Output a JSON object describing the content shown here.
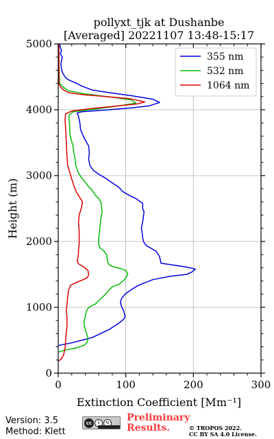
{
  "chart_data": {
    "type": "line",
    "title": "pollyxt_tjk at Dushanbe",
    "subtitle": "[Averaged] 20221107 13:48-15:17",
    "xlabel": "Extinction Coefficient [Mm⁻¹]",
    "ylabel": "Height (m)",
    "xlim": [
      0,
      300
    ],
    "ylim": [
      0,
      5000
    ],
    "xticks": [
      0,
      100,
      200,
      300
    ],
    "yticks": [
      0,
      1000,
      2000,
      3000,
      4000,
      5000
    ],
    "grid": true,
    "legend_position": "top-right",
    "series": [
      {
        "name": "355 nm",
        "color": "#0000dd",
        "points": [
          [
            0,
            420
          ],
          [
            20,
            460
          ],
          [
            50,
            540
          ],
          [
            75,
            660
          ],
          [
            90,
            760
          ],
          [
            97,
            820
          ],
          [
            99,
            860
          ],
          [
            97,
            940
          ],
          [
            93,
            1030
          ],
          [
            92,
            1080
          ],
          [
            94,
            1140
          ],
          [
            100,
            1210
          ],
          [
            110,
            1280
          ],
          [
            118,
            1330
          ],
          [
            125,
            1360
          ],
          [
            140,
            1420
          ],
          [
            165,
            1470
          ],
          [
            190,
            1500
          ],
          [
            197,
            1530
          ],
          [
            203,
            1580
          ],
          [
            190,
            1610
          ],
          [
            165,
            1650
          ],
          [
            152,
            1670
          ],
          [
            151,
            1720
          ],
          [
            150,
            1770
          ],
          [
            145,
            1850
          ],
          [
            130,
            1940
          ],
          [
            126,
            2000
          ],
          [
            125,
            2060
          ],
          [
            124,
            2150
          ],
          [
            123,
            2200
          ],
          [
            125,
            2300
          ],
          [
            127,
            2450
          ],
          [
            125,
            2500
          ],
          [
            125,
            2580
          ],
          [
            115,
            2650
          ],
          [
            105,
            2700
          ],
          [
            95,
            2760
          ],
          [
            90,
            2820
          ],
          [
            80,
            2890
          ],
          [
            70,
            2960
          ],
          [
            60,
            3020
          ],
          [
            52,
            3080
          ],
          [
            47,
            3150
          ],
          [
            45,
            3250
          ],
          [
            46,
            3350
          ],
          [
            45,
            3450
          ],
          [
            40,
            3540
          ],
          [
            37,
            3600
          ],
          [
            33,
            3700
          ],
          [
            32,
            3800
          ],
          [
            30,
            3900
          ],
          [
            28,
            3950
          ],
          [
            35,
            3970
          ],
          [
            75,
            4000
          ],
          [
            110,
            4030
          ],
          [
            135,
            4060
          ],
          [
            150,
            4110
          ],
          [
            140,
            4160
          ],
          [
            110,
            4210
          ],
          [
            75,
            4260
          ],
          [
            50,
            4300
          ],
          [
            35,
            4360
          ],
          [
            25,
            4410
          ],
          [
            14,
            4460
          ],
          [
            10,
            4500
          ],
          [
            7,
            4550
          ],
          [
            5,
            4600
          ],
          [
            4,
            4700
          ],
          [
            6,
            4800
          ],
          [
            3,
            4850
          ],
          [
            5,
            4900
          ],
          [
            3,
            4950
          ],
          [
            2,
            5000
          ]
        ]
      },
      {
        "name": "532 nm",
        "color": "#00bb00",
        "points": [
          [
            0,
            320
          ],
          [
            10,
            350
          ],
          [
            25,
            380
          ],
          [
            38,
            420
          ],
          [
            43,
            470
          ],
          [
            44,
            530
          ],
          [
            42,
            600
          ],
          [
            39,
            700
          ],
          [
            38,
            780
          ],
          [
            40,
            860
          ],
          [
            41,
            920
          ],
          [
            43,
            970
          ],
          [
            47,
            1010
          ],
          [
            55,
            1050
          ],
          [
            60,
            1100
          ],
          [
            65,
            1150
          ],
          [
            70,
            1200
          ],
          [
            75,
            1260
          ],
          [
            80,
            1310
          ],
          [
            90,
            1350
          ],
          [
            98,
            1420
          ],
          [
            103,
            1500
          ],
          [
            100,
            1560
          ],
          [
            92,
            1590
          ],
          [
            80,
            1620
          ],
          [
            75,
            1650
          ],
          [
            73,
            1700
          ],
          [
            72,
            1790
          ],
          [
            68,
            1850
          ],
          [
            62,
            1900
          ],
          [
            60,
            1950
          ],
          [
            60,
            2050
          ],
          [
            61,
            2150
          ],
          [
            62,
            2250
          ],
          [
            63,
            2350
          ],
          [
            65,
            2450
          ],
          [
            64,
            2550
          ],
          [
            63,
            2600
          ],
          [
            60,
            2650
          ],
          [
            55,
            2700
          ],
          [
            50,
            2780
          ],
          [
            45,
            2830
          ],
          [
            40,
            2900
          ],
          [
            35,
            2960
          ],
          [
            30,
            3040
          ],
          [
            26,
            3150
          ],
          [
            25,
            3250
          ],
          [
            23,
            3350
          ],
          [
            22,
            3450
          ],
          [
            19,
            3550
          ],
          [
            17,
            3650
          ],
          [
            17,
            3750
          ],
          [
            16,
            3850
          ],
          [
            16,
            3920
          ],
          [
            22,
            3970
          ],
          [
            55,
            4010
          ],
          [
            90,
            4060
          ],
          [
            115,
            4100
          ],
          [
            108,
            4150
          ],
          [
            80,
            4190
          ],
          [
            40,
            4240
          ],
          [
            15,
            4290
          ],
          [
            8,
            4340
          ],
          [
            2,
            4400
          ],
          [
            1,
            4700
          ],
          [
            1,
            5000
          ]
        ]
      },
      {
        "name": "1064 nm",
        "color": "#dd0000",
        "points": [
          [
            0,
            180
          ],
          [
            5,
            220
          ],
          [
            8,
            280
          ],
          [
            10,
            380
          ],
          [
            11,
            500
          ],
          [
            12,
            620
          ],
          [
            13,
            720
          ],
          [
            13,
            850
          ],
          [
            12,
            950
          ],
          [
            13,
            1050
          ],
          [
            14,
            1150
          ],
          [
            15,
            1250
          ],
          [
            18,
            1330
          ],
          [
            25,
            1370
          ],
          [
            35,
            1410
          ],
          [
            43,
            1450
          ],
          [
            45,
            1490
          ],
          [
            44,
            1560
          ],
          [
            38,
            1610
          ],
          [
            30,
            1660
          ],
          [
            28,
            1700
          ],
          [
            29,
            1750
          ],
          [
            30,
            1820
          ],
          [
            30,
            1880
          ],
          [
            31,
            1950
          ],
          [
            31,
            2050
          ],
          [
            31,
            2150
          ],
          [
            30,
            2300
          ],
          [
            31,
            2400
          ],
          [
            34,
            2500
          ],
          [
            36,
            2600
          ],
          [
            33,
            2650
          ],
          [
            30,
            2700
          ],
          [
            27,
            2750
          ],
          [
            23,
            2850
          ],
          [
            20,
            2950
          ],
          [
            17,
            3050
          ],
          [
            14,
            3150
          ],
          [
            13,
            3300
          ],
          [
            12,
            3500
          ],
          [
            11,
            3700
          ],
          [
            10,
            3850
          ],
          [
            11,
            3940
          ],
          [
            20,
            3980
          ],
          [
            50,
            4020
          ],
          [
            90,
            4060
          ],
          [
            118,
            4090
          ],
          [
            128,
            4120
          ],
          [
            105,
            4170
          ],
          [
            70,
            4200
          ],
          [
            35,
            4230
          ],
          [
            15,
            4260
          ],
          [
            8,
            4300
          ],
          [
            3,
            4350
          ],
          [
            1,
            4400
          ],
          [
            1,
            5000
          ]
        ]
      }
    ]
  },
  "footer": {
    "version": "Version: 3.5",
    "method": "Method: Klett",
    "cc_label": "cc",
    "cc_by": "BY",
    "cc_sa": "SA",
    "preliminary_line1": "Preliminary",
    "preliminary_line2": "Results.",
    "copyright_line1": "© TROPOS 2022.",
    "copyright_line2": "CC BY SA 4.0 License."
  }
}
